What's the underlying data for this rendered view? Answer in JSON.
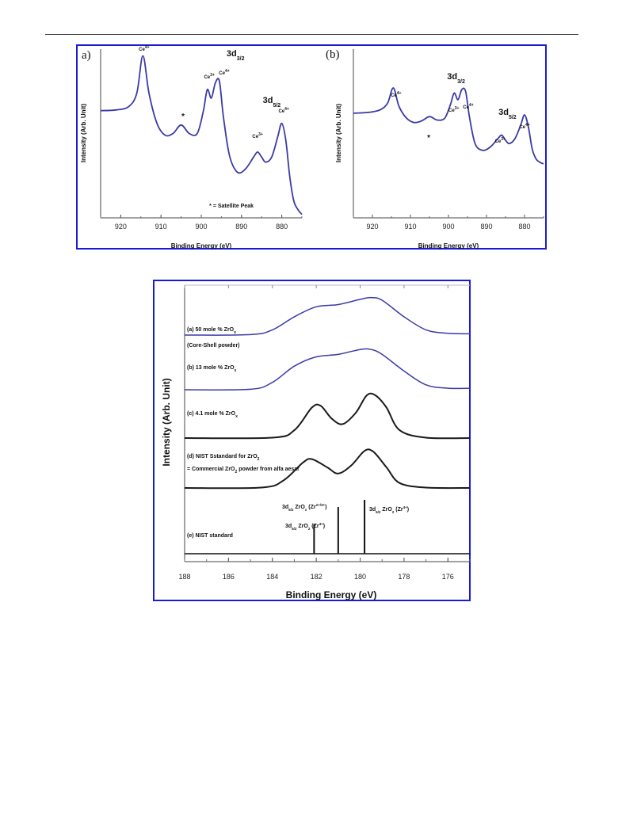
{
  "chart_data": [
    {
      "type": "line",
      "panel_label": "a)",
      "xlabel": "Binding Energy (eV)",
      "ylabel": "Intensity (Arb. Unit)",
      "xlim": [
        925,
        875
      ],
      "xticks": [
        920,
        910,
        900,
        890,
        880
      ],
      "color": "#3a3aa6",
      "series": [
        {
          "x": [
            925,
            921,
            918,
            916,
            914.5,
            913,
            911,
            909,
            907,
            905,
            903,
            901,
            899.5,
            898.5,
            897.5,
            896.5,
            895.5,
            894.5,
            893,
            891,
            889,
            887,
            886,
            885,
            884,
            882.5,
            881,
            880,
            879,
            878,
            877,
            876,
            875
          ],
          "y": [
            0.635,
            0.64,
            0.66,
            0.74,
            0.96,
            0.74,
            0.56,
            0.49,
            0.5,
            0.55,
            0.5,
            0.5,
            0.63,
            0.76,
            0.71,
            0.8,
            0.81,
            0.6,
            0.37,
            0.27,
            0.29,
            0.36,
            0.39,
            0.36,
            0.33,
            0.36,
            0.48,
            0.56,
            0.46,
            0.24,
            0.1,
            0.05,
            0.02
          ]
        }
      ],
      "annotations": {
        "ce4_left": "Ce",
        "ce4_left_sup": "4+",
        "group_3d32": "3d",
        "group_3d32_sub": "3/2",
        "ce3_mid": "Ce",
        "ce3_mid_sup": "3+",
        "ce4_mid": "Ce",
        "ce4_mid_sup": "4+",
        "group_3d52": "3d",
        "group_3d52_sub": "5/2",
        "ce3_right": "Ce",
        "ce3_right_sup": "3+",
        "ce4_right": "Ce",
        "ce4_right_sup": "4+",
        "star": "*",
        "satellite_note": "* = Satellite Peak"
      }
    },
    {
      "type": "line",
      "panel_label": "(b)",
      "xlabel": "Binding Energy (eV)",
      "ylabel": "Intensity (Arb. Unit)",
      "xlim": [
        925,
        875
      ],
      "xticks": [
        920,
        910,
        900,
        890,
        880
      ],
      "color": "#3a3aa6",
      "series": [
        {
          "x": [
            925,
            921,
            918,
            916,
            914.5,
            913,
            911,
            909,
            907,
            905,
            903,
            901,
            899.5,
            898.5,
            897.5,
            896.5,
            895.5,
            894.5,
            893,
            891,
            889,
            887,
            886,
            885,
            884,
            882.5,
            881,
            880,
            879,
            878,
            877,
            876,
            875
          ],
          "y": [
            0.62,
            0.625,
            0.64,
            0.68,
            0.77,
            0.66,
            0.59,
            0.565,
            0.575,
            0.6,
            0.58,
            0.59,
            0.67,
            0.74,
            0.7,
            0.76,
            0.75,
            0.6,
            0.44,
            0.4,
            0.42,
            0.47,
            0.49,
            0.46,
            0.44,
            0.47,
            0.55,
            0.61,
            0.54,
            0.41,
            0.35,
            0.33,
            0.32
          ]
        }
      ],
      "annotations": {
        "ce4_left": "Ce",
        "ce4_left_sup": "4+",
        "group_3d32": "3d",
        "group_3d32_sub": "3/2",
        "ce3_mid": "Ce",
        "ce3_mid_sup": "3+",
        "ce4_mid": "Ce",
        "ce4_mid_sup": "4+",
        "group_3d52": "3d",
        "group_3d52_sub": "5/2",
        "ce3_right": "Ce",
        "ce3_right_sup": "3+",
        "ce4_right": "Ce",
        "ce4_right_sup": "4+",
        "star": "*"
      }
    },
    {
      "type": "line",
      "xlabel": "Binding Energy (eV)",
      "ylabel": "Intensity (Arb. Unit)",
      "xlim": [
        188,
        175
      ],
      "xticks": [
        188,
        186,
        184,
        182,
        180,
        178,
        176
      ],
      "series": [
        {
          "label_lines": [
            "(a) 50 mole % ZrO",
            "(Core-Shell powder)"
          ],
          "label_sub": "x",
          "color": "#3a3aa6",
          "x": [
            188,
            185,
            184,
            183,
            182,
            181,
            180,
            179.5,
            179,
            178,
            177,
            176,
            175
          ],
          "y": [
            0,
            0.01,
            0.12,
            0.42,
            0.65,
            0.7,
            0.82,
            0.86,
            0.8,
            0.42,
            0.12,
            0.04,
            0.03
          ]
        },
        {
          "label_lines": [
            "(b) 13 mole % ZrO"
          ],
          "label_sub": "x",
          "color": "#3a3aa6",
          "x": [
            188,
            185,
            184,
            183,
            182,
            181,
            180,
            179.5,
            179,
            178,
            177,
            176,
            175
          ],
          "y": [
            0,
            0.01,
            0.15,
            0.48,
            0.67,
            0.72,
            0.82,
            0.82,
            0.72,
            0.38,
            0.1,
            0.03,
            0.03
          ]
        },
        {
          "label_lines": [
            "(c) 4.1 mole % ZrO"
          ],
          "label_sub": "x",
          "color": "#1a1a1a",
          "x": [
            188,
            184,
            183,
            182.2,
            181.8,
            181.3,
            180.8,
            180.2,
            179.7,
            179.3,
            178.8,
            178.2,
            177,
            175
          ],
          "y": [
            0,
            0.01,
            0.18,
            0.7,
            0.74,
            0.45,
            0.32,
            0.58,
            0.98,
            0.98,
            0.7,
            0.18,
            0.01,
            0
          ]
        },
        {
          "label_lines": [
            "(d) NIST Sstandard for ZrO",
            "= Commercial ZrO  powder from alfa aesar"
          ],
          "label_sub": "2",
          "color": "#1a1a1a",
          "x": [
            188,
            184.5,
            183.5,
            182.6,
            182.2,
            181.5,
            181,
            180.4,
            179.8,
            179.4,
            178.8,
            178.2,
            177,
            175
          ],
          "y": [
            0,
            0.01,
            0.18,
            0.62,
            0.7,
            0.5,
            0.35,
            0.55,
            0.9,
            0.88,
            0.5,
            0.12,
            0.01,
            0
          ]
        }
      ],
      "reference_lines": {
        "label": "(e) NIST standard",
        "positions": [
          182.1,
          181.0,
          179.8
        ],
        "labels": [
          {
            "pre": "3d",
            "sub": "5/2",
            "mid": " ZrO",
            "mid_sub": "2",
            "post": " (Zr",
            "sup": "4+",
            "end": ")"
          },
          {
            "pre": "3d",
            "sub": "5/2",
            "mid": " ZrO",
            "mid_sub": "x",
            "post": " (Zr",
            "sup": "2+/3+",
            "end": ")"
          },
          {
            "pre": "3d",
            "sub": "5/2",
            "mid": " ZrO",
            "mid_sub": "2",
            "post": " (Zr",
            "sup": "4+",
            "end": ")"
          }
        ]
      }
    }
  ]
}
